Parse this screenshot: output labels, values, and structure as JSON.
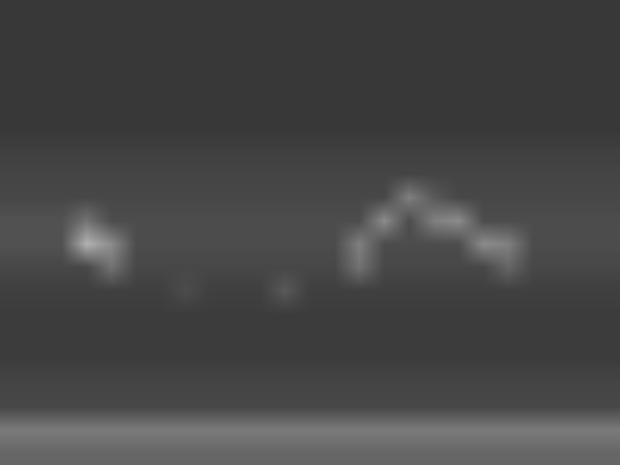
{
  "chart_data": {
    "type": "heatmap",
    "tick_labels": false,
    "color": "gray",
    "color_range": [
      0,
      100
    ],
    "cells": [
      [
        22,
        22,
        22,
        22,
        22,
        22,
        22,
        22,
        22,
        22,
        22,
        22,
        22,
        22,
        22,
        22,
        22,
        22,
        22,
        22,
        22,
        22,
        22,
        22,
        22
      ],
      [
        22,
        22,
        22,
        22,
        22,
        22,
        22,
        22,
        22,
        22,
        22,
        22,
        22,
        22,
        22,
        22,
        22,
        22,
        22,
        22,
        22,
        22,
        22,
        22,
        22
      ],
      [
        22,
        22,
        22,
        22,
        22,
        22,
        22,
        22,
        22,
        22,
        22,
        22,
        22,
        22,
        22,
        22,
        22,
        22,
        22,
        22,
        22,
        22,
        22,
        22,
        22
      ],
      [
        22,
        22,
        22,
        22,
        22,
        22,
        22,
        22,
        22,
        22,
        22,
        22,
        22,
        22,
        22,
        22,
        22,
        22,
        22,
        22,
        22,
        22,
        22,
        22,
        22
      ],
      [
        22,
        22,
        22,
        22,
        22,
        22,
        22,
        22,
        22,
        22,
        22,
        22,
        22,
        22,
        22,
        22,
        22,
        22,
        22,
        22,
        22,
        22,
        22,
        22,
        22
      ],
      [
        22,
        22,
        22,
        22,
        22,
        22,
        22,
        22,
        22,
        22,
        22,
        22,
        22,
        22,
        22,
        22,
        22,
        22,
        22,
        22,
        22,
        22,
        22,
        22,
        22
      ],
      [
        25,
        25,
        25,
        25,
        25,
        25,
        25,
        25,
        25,
        25,
        25,
        25,
        25,
        25,
        25,
        25,
        25,
        25,
        25,
        25,
        25,
        25,
        25,
        25,
        25
      ],
      [
        27,
        27,
        27,
        27,
        27,
        27,
        27,
        27,
        27,
        27,
        27,
        27,
        27,
        27,
        27,
        27,
        27,
        27,
        27,
        27,
        27,
        27,
        27,
        27,
        27
      ],
      [
        28,
        28,
        28,
        28,
        28,
        28,
        28,
        28,
        28,
        28,
        28,
        28,
        28,
        28,
        28,
        28,
        50,
        35,
        28,
        28,
        28,
        28,
        28,
        28,
        28
      ],
      [
        32,
        32,
        32,
        45,
        30,
        30,
        30,
        30,
        30,
        30,
        30,
        30,
        30,
        30,
        30,
        55,
        30,
        50,
        55,
        30,
        30,
        30,
        30,
        30,
        30
      ],
      [
        32,
        32,
        32,
        70,
        55,
        30,
        30,
        30,
        30,
        30,
        30,
        30,
        30,
        30,
        50,
        30,
        30,
        30,
        30,
        55,
        50,
        30,
        30,
        30,
        30
      ],
      [
        28,
        28,
        28,
        28,
        45,
        28,
        28,
        28,
        28,
        28,
        28,
        28,
        28,
        28,
        45,
        28,
        28,
        28,
        28,
        28,
        40,
        28,
        28,
        28,
        28
      ],
      [
        25,
        25,
        25,
        25,
        25,
        25,
        25,
        30,
        25,
        25,
        25,
        35,
        25,
        25,
        25,
        25,
        25,
        25,
        25,
        25,
        25,
        25,
        25,
        25,
        25
      ],
      [
        24,
        24,
        24,
        24,
        24,
        24,
        24,
        24,
        24,
        24,
        24,
        24,
        24,
        24,
        24,
        24,
        24,
        24,
        24,
        24,
        24,
        24,
        24,
        24,
        24
      ],
      [
        24,
        24,
        24,
        24,
        24,
        24,
        24,
        24,
        24,
        24,
        24,
        24,
        24,
        24,
        24,
        24,
        24,
        24,
        24,
        24,
        24,
        24,
        24,
        24,
        24
      ],
      [
        24,
        24,
        24,
        24,
        24,
        24,
        24,
        24,
        24,
        24,
        24,
        24,
        24,
        24,
        24,
        24,
        24,
        24,
        24,
        24,
        24,
        24,
        24,
        24,
        24
      ],
      [
        27,
        27,
        27,
        27,
        27,
        27,
        27,
        27,
        27,
        27,
        27,
        27,
        27,
        27,
        27,
        27,
        27,
        27,
        27,
        27,
        27,
        27,
        27,
        27,
        27
      ],
      [
        28,
        28,
        28,
        28,
        28,
        28,
        28,
        28,
        28,
        28,
        28,
        28,
        28,
        28,
        28,
        28,
        28,
        28,
        28,
        28,
        28,
        28,
        28,
        28,
        28
      ],
      [
        48,
        48,
        48,
        48,
        48,
        48,
        48,
        48,
        48,
        48,
        48,
        48,
        48,
        48,
        48,
        48,
        48,
        48,
        48,
        48,
        48,
        48,
        48,
        48,
        48
      ],
      [
        40,
        40,
        40,
        40,
        40,
        40,
        40,
        40,
        40,
        40,
        40,
        40,
        40,
        40,
        40,
        40,
        40,
        40,
        40,
        40,
        40,
        40,
        40,
        40,
        40
      ]
    ]
  }
}
